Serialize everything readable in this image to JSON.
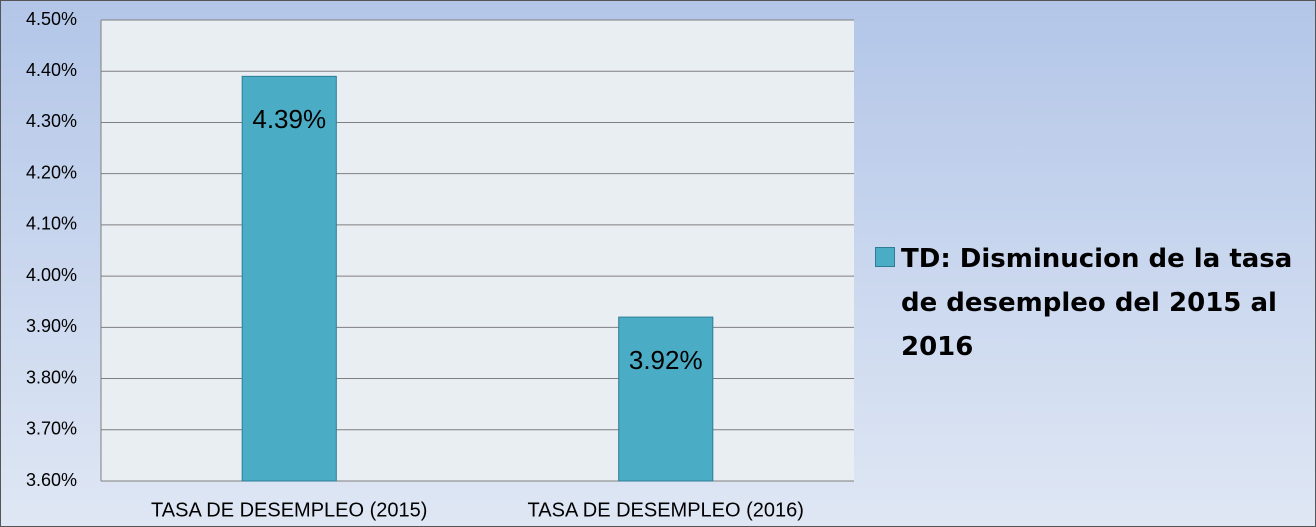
{
  "chart_data": {
    "type": "bar",
    "categories": [
      "TASA DE DESEMPLEO (2015)",
      "TASA DE DESEMPLEO (2016)"
    ],
    "series": [
      {
        "name": "TD: Disminucion de la tasa de desempleo del 2015 al 2016",
        "color": "#4bacc6",
        "values": [
          4.39,
          3.92
        ],
        "value_labels": [
          "4.39%",
          "3.92%"
        ]
      }
    ],
    "ylim": [
      3.6,
      4.5
    ],
    "yticks": [
      {
        "value": 3.6,
        "label": "3.60%"
      },
      {
        "value": 3.7,
        "label": "3.70%"
      },
      {
        "value": 3.8,
        "label": "3.80%"
      },
      {
        "value": 3.9,
        "label": "3.90%"
      },
      {
        "value": 4.0,
        "label": "4.00%"
      },
      {
        "value": 4.1,
        "label": "4.10%"
      },
      {
        "value": 4.2,
        "label": "4.20%"
      },
      {
        "value": 4.3,
        "label": "4.30%"
      },
      {
        "value": 4.4,
        "label": "4.40%"
      },
      {
        "value": 4.5,
        "label": "4.50%"
      }
    ],
    "grid": true,
    "legend": "right"
  }
}
